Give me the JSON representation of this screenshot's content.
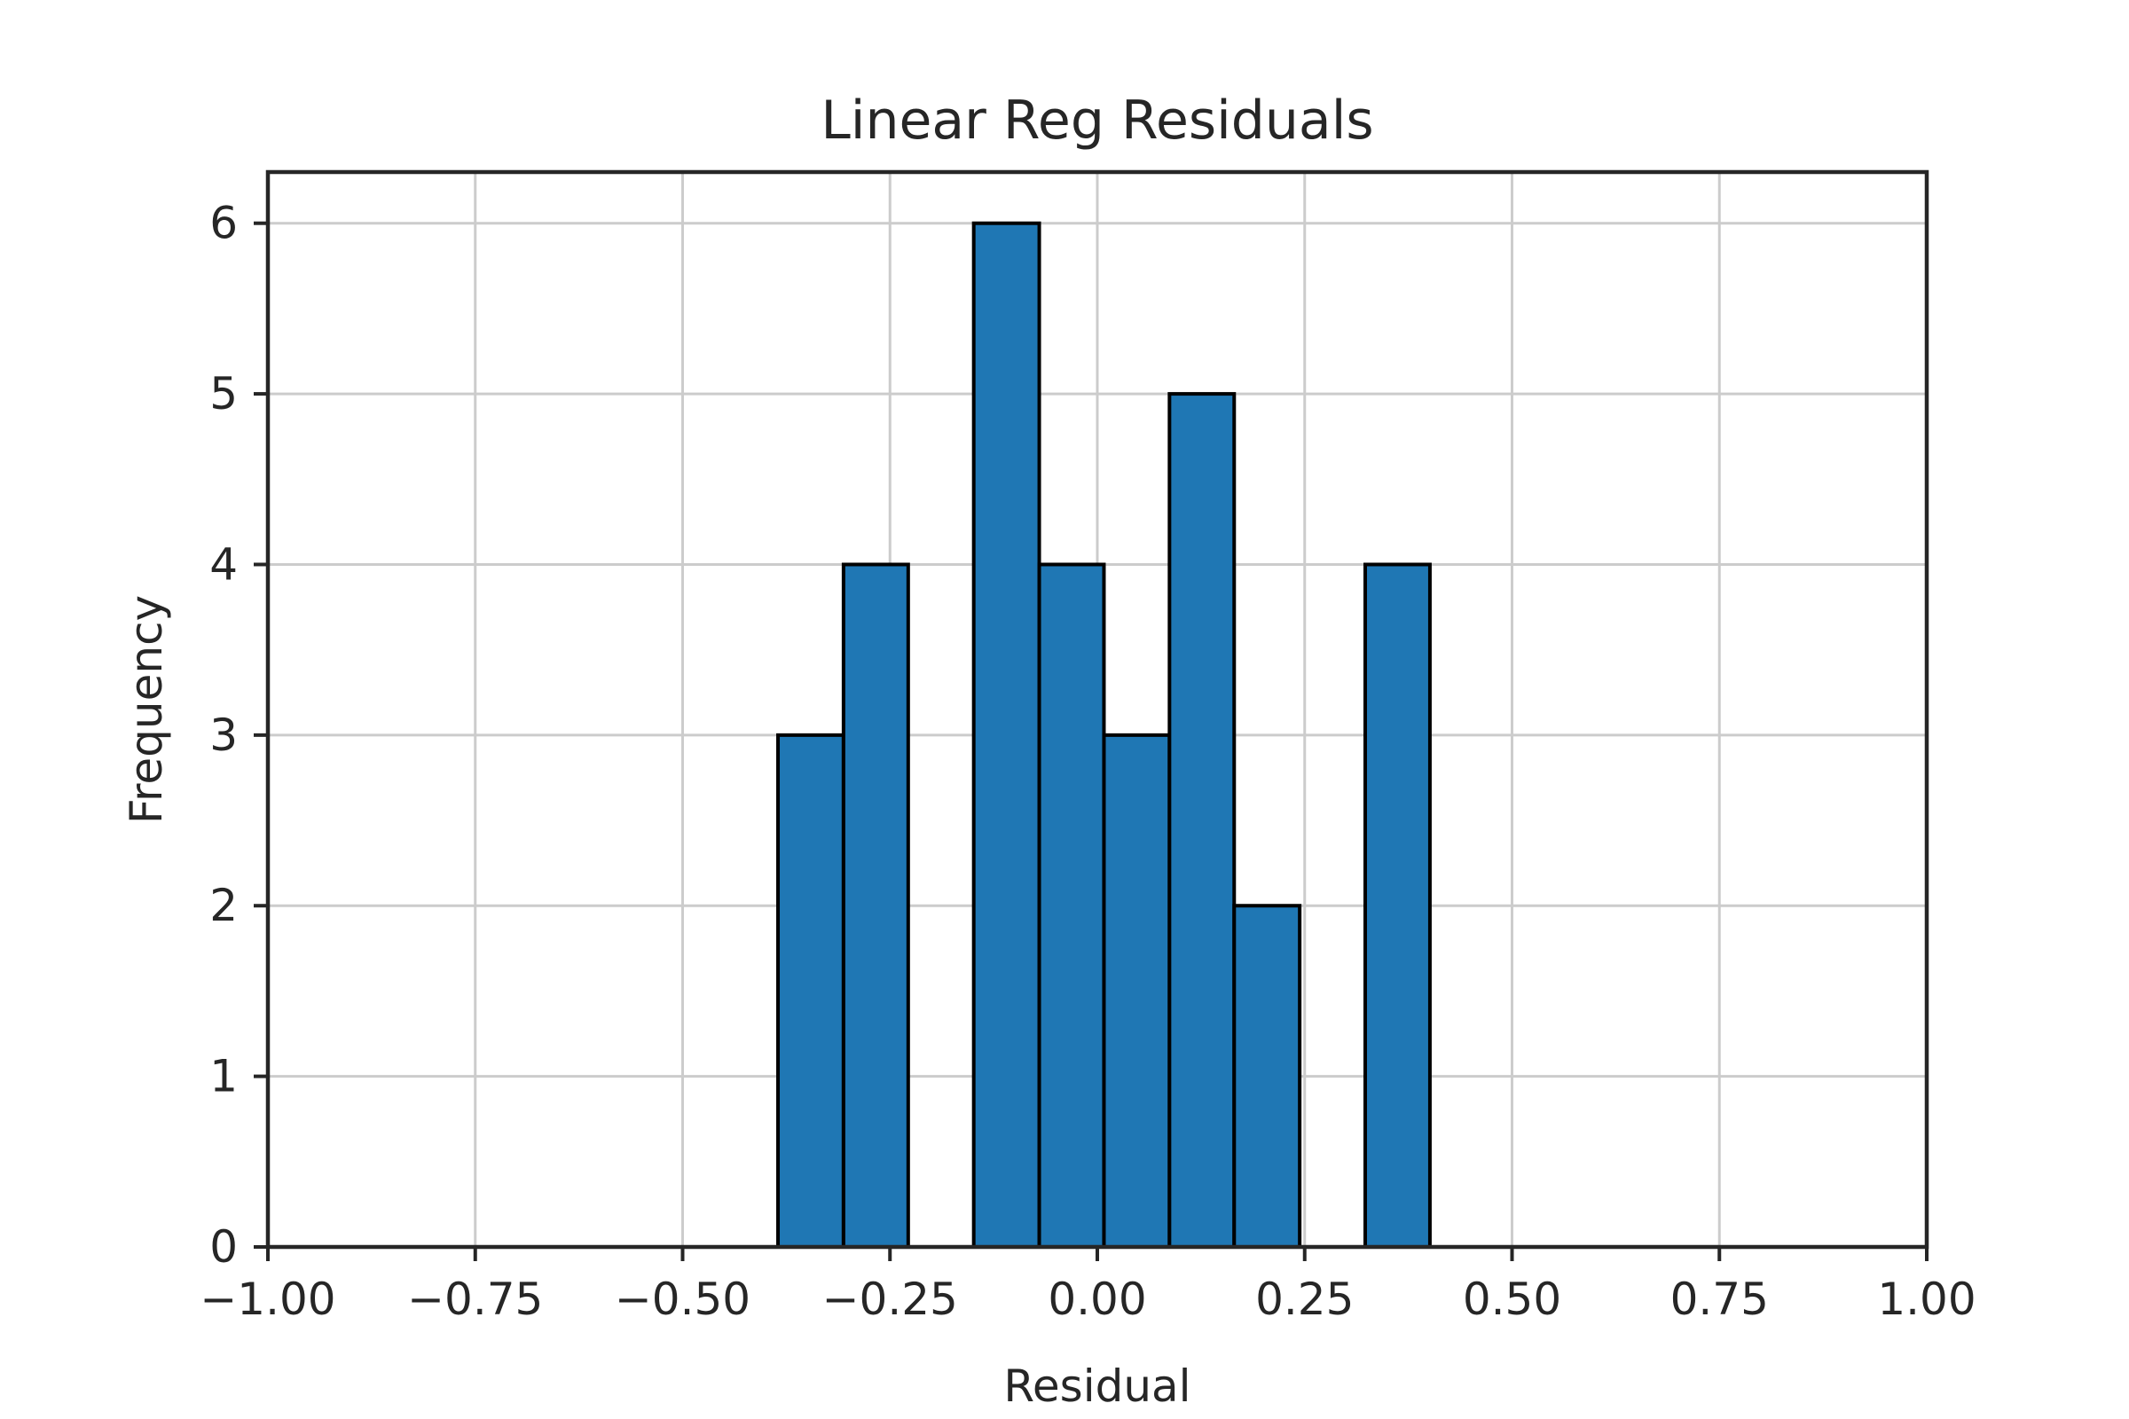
{
  "chart_data": {
    "type": "bar",
    "title": "Linear Reg Residuals",
    "xlabel": "Residual",
    "ylabel": "Frequency",
    "xlim": [
      -1.0,
      1.0
    ],
    "ylim": [
      0,
      6.3
    ],
    "grid": true,
    "bar_color": "#1f77b4",
    "bar_edge_color": "#000000",
    "bin_edges": [
      -0.385,
      -0.306,
      -0.228,
      -0.149,
      -0.07,
      0.008,
      0.087,
      0.165,
      0.244,
      0.323,
      0.401
    ],
    "counts": [
      3,
      4,
      0,
      6,
      4,
      3,
      5,
      2,
      0,
      4
    ],
    "x_ticks": [
      -1.0,
      -0.75,
      -0.5,
      -0.25,
      0.0,
      0.25,
      0.5,
      0.75,
      1.0
    ],
    "x_tick_labels": [
      "−1.00",
      "−0.75",
      "−0.50",
      "−0.25",
      "0.00",
      "0.25",
      "0.50",
      "0.75",
      "1.00"
    ],
    "y_ticks": [
      0,
      1,
      2,
      3,
      4,
      5,
      6
    ],
    "y_tick_labels": [
      "0",
      "1",
      "2",
      "3",
      "4",
      "5",
      "6"
    ]
  }
}
